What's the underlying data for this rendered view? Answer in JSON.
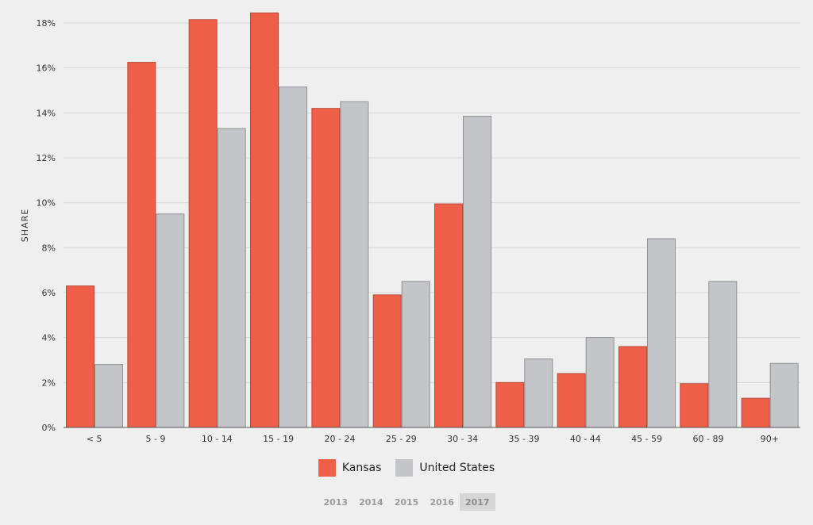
{
  "colors": {
    "kansas": "#ef5f48",
    "us": "#c4c5c9",
    "grid": "#d6d6d6",
    "axis": "#555555"
  },
  "chart_data": {
    "type": "bar",
    "title": "",
    "xlabel": "",
    "ylabel": "SHARE",
    "ylim": [
      0,
      18
    ],
    "y_ticks": [
      0,
      2,
      4,
      6,
      8,
      10,
      12,
      14,
      16,
      18
    ],
    "y_tick_labels": [
      "0%",
      "2%",
      "4%",
      "6%",
      "8%",
      "10%",
      "12%",
      "14%",
      "16%",
      "18%"
    ],
    "grid": true,
    "legend_position": "bottom-center",
    "categories": [
      "< 5",
      "5 - 9",
      "10 - 14",
      "15 - 19",
      "20 - 24",
      "25 - 29",
      "30 - 34",
      "35 - 39",
      "40 - 44",
      "45 - 59",
      "60 - 89",
      "90+"
    ],
    "series": [
      {
        "name": "Kansas",
        "values": [
          6.3,
          16.25,
          18.15,
          18.45,
          14.2,
          5.9,
          9.95,
          2.0,
          2.4,
          3.6,
          1.95,
          1.3
        ]
      },
      {
        "name": "United States",
        "values": [
          2.8,
          9.5,
          13.3,
          15.15,
          14.5,
          6.5,
          13.85,
          3.05,
          4.0,
          8.4,
          6.5,
          2.85
        ]
      }
    ]
  },
  "legend": [
    {
      "label": "Kansas",
      "color": "#ef5f48"
    },
    {
      "label": "United States",
      "color": "#c4c5c9"
    }
  ],
  "years": {
    "items": [
      "2013",
      "2014",
      "2015",
      "2016",
      "2017"
    ],
    "selected": "2017"
  }
}
